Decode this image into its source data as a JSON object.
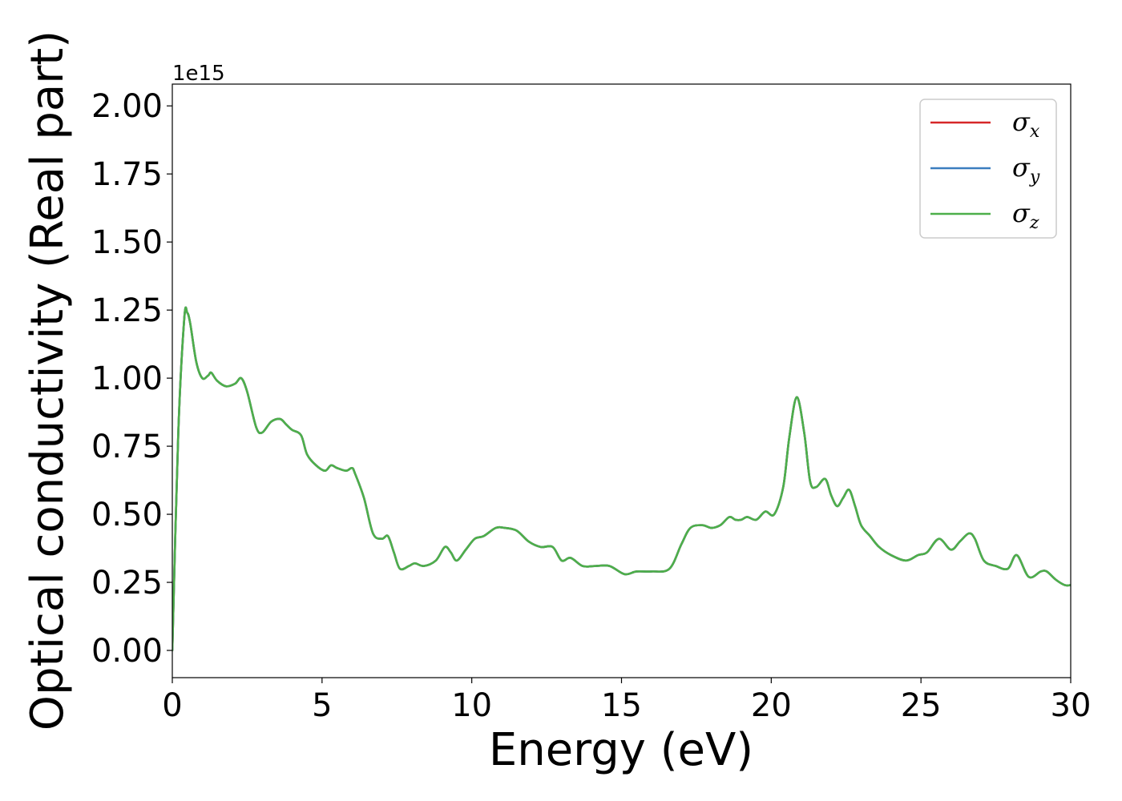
{
  "chart_data": {
    "type": "line",
    "title": "",
    "xlabel": "Energy (eV)",
    "ylabel": "Optical conductivity (Real part)",
    "y_offset_label": "1e15",
    "xlim": [
      0,
      30
    ],
    "ylim": [
      -0.1,
      2.08
    ],
    "x_ticks": [
      0,
      5,
      10,
      15,
      20,
      25,
      30
    ],
    "x_tick_labels": [
      "0",
      "5",
      "10",
      "15",
      "20",
      "25",
      "30"
    ],
    "y_ticks": [
      0,
      0.25,
      0.5,
      0.75,
      1.0,
      1.25,
      1.5,
      1.75,
      2.0
    ],
    "y_tick_labels": [
      "0.00",
      "0.25",
      "0.50",
      "0.75",
      "1.00",
      "1.25",
      "1.50",
      "1.75",
      "2.00"
    ],
    "grid": false,
    "legend_position": "top-right",
    "legend": [
      {
        "symbol": "σ",
        "subscript": "x",
        "color": "#d62728"
      },
      {
        "symbol": "σ",
        "subscript": "y",
        "color": "#3a7dbf"
      },
      {
        "symbol": "σ",
        "subscript": "z",
        "color": "#4daf4a"
      }
    ],
    "x": [
      0,
      0.2,
      0.4,
      0.5,
      0.6,
      0.8,
      1.0,
      1.2,
      1.3,
      1.5,
      1.8,
      2.1,
      2.3,
      2.5,
      2.8,
      3.0,
      3.3,
      3.6,
      3.8,
      4.0,
      4.3,
      4.5,
      4.8,
      5.1,
      5.3,
      5.5,
      5.8,
      6.0,
      6.1,
      6.4,
      6.7,
      7.0,
      7.2,
      7.4,
      7.6,
      7.9,
      8.1,
      8.4,
      8.8,
      9.1,
      9.3,
      9.5,
      9.8,
      10.1,
      10.4,
      10.8,
      11.1,
      11.5,
      11.9,
      12.3,
      12.7,
      13.0,
      13.3,
      13.7,
      14.1,
      14.6,
      15.1,
      15.5,
      16.0,
      16.6,
      17.0,
      17.3,
      17.7,
      18.0,
      18.3,
      18.6,
      18.8,
      19.0,
      19.2,
      19.5,
      19.8,
      20.1,
      20.4,
      20.6,
      20.85,
      21.1,
      21.3,
      21.5,
      21.8,
      22.0,
      22.2,
      22.4,
      22.6,
      22.8,
      23.0,
      23.3,
      23.6,
      24.0,
      24.5,
      24.9,
      25.2,
      25.6,
      26.0,
      26.3,
      26.6,
      26.8,
      27.1,
      27.5,
      27.9,
      28.2,
      28.6,
      29.0,
      29.2,
      29.5,
      29.8,
      30.0
    ],
    "series": [
      {
        "name": "σx",
        "color": "#d62728",
        "values": [
          0.0,
          0.8,
          1.22,
          1.24,
          1.2,
          1.06,
          1.0,
          1.01,
          1.02,
          0.99,
          0.97,
          0.98,
          1.0,
          0.95,
          0.82,
          0.8,
          0.84,
          0.85,
          0.83,
          0.81,
          0.79,
          0.72,
          0.68,
          0.66,
          0.68,
          0.67,
          0.66,
          0.67,
          0.65,
          0.56,
          0.43,
          0.41,
          0.42,
          0.36,
          0.3,
          0.31,
          0.32,
          0.31,
          0.33,
          0.38,
          0.36,
          0.33,
          0.37,
          0.41,
          0.42,
          0.45,
          0.45,
          0.44,
          0.4,
          0.38,
          0.38,
          0.33,
          0.34,
          0.31,
          0.31,
          0.31,
          0.28,
          0.29,
          0.29,
          0.3,
          0.39,
          0.45,
          0.46,
          0.45,
          0.46,
          0.49,
          0.48,
          0.48,
          0.49,
          0.48,
          0.51,
          0.5,
          0.6,
          0.78,
          0.93,
          0.8,
          0.62,
          0.6,
          0.63,
          0.57,
          0.53,
          0.56,
          0.59,
          0.53,
          0.46,
          0.42,
          0.38,
          0.35,
          0.33,
          0.35,
          0.36,
          0.41,
          0.37,
          0.4,
          0.43,
          0.41,
          0.33,
          0.31,
          0.3,
          0.35,
          0.27,
          0.29,
          0.29,
          0.26,
          0.24,
          0.24
        ]
      },
      {
        "name": "σy",
        "color": "#3a7dbf",
        "values": [
          0.0,
          0.8,
          1.22,
          1.24,
          1.2,
          1.06,
          1.0,
          1.01,
          1.02,
          0.99,
          0.97,
          0.98,
          1.0,
          0.95,
          0.82,
          0.8,
          0.84,
          0.85,
          0.83,
          0.81,
          0.79,
          0.72,
          0.68,
          0.66,
          0.68,
          0.67,
          0.66,
          0.67,
          0.65,
          0.56,
          0.43,
          0.41,
          0.42,
          0.36,
          0.3,
          0.31,
          0.32,
          0.31,
          0.33,
          0.38,
          0.36,
          0.33,
          0.37,
          0.41,
          0.42,
          0.45,
          0.45,
          0.44,
          0.4,
          0.38,
          0.38,
          0.33,
          0.34,
          0.31,
          0.31,
          0.31,
          0.28,
          0.29,
          0.29,
          0.3,
          0.39,
          0.45,
          0.46,
          0.45,
          0.46,
          0.49,
          0.48,
          0.48,
          0.49,
          0.48,
          0.51,
          0.5,
          0.6,
          0.78,
          0.93,
          0.8,
          0.62,
          0.6,
          0.63,
          0.57,
          0.53,
          0.56,
          0.59,
          0.53,
          0.46,
          0.42,
          0.38,
          0.35,
          0.33,
          0.35,
          0.36,
          0.41,
          0.37,
          0.4,
          0.43,
          0.41,
          0.33,
          0.31,
          0.3,
          0.35,
          0.27,
          0.29,
          0.29,
          0.26,
          0.24,
          0.24
        ]
      },
      {
        "name": "σz",
        "color": "#4daf4a",
        "values": [
          0.0,
          0.8,
          1.22,
          1.24,
          1.2,
          1.06,
          1.0,
          1.01,
          1.02,
          0.99,
          0.97,
          0.98,
          1.0,
          0.95,
          0.82,
          0.8,
          0.84,
          0.85,
          0.83,
          0.81,
          0.79,
          0.72,
          0.68,
          0.66,
          0.68,
          0.67,
          0.66,
          0.67,
          0.65,
          0.56,
          0.43,
          0.41,
          0.42,
          0.36,
          0.3,
          0.31,
          0.32,
          0.31,
          0.33,
          0.38,
          0.36,
          0.33,
          0.37,
          0.41,
          0.42,
          0.45,
          0.45,
          0.44,
          0.4,
          0.38,
          0.38,
          0.33,
          0.34,
          0.31,
          0.31,
          0.31,
          0.28,
          0.29,
          0.29,
          0.3,
          0.39,
          0.45,
          0.46,
          0.45,
          0.46,
          0.49,
          0.48,
          0.48,
          0.49,
          0.48,
          0.51,
          0.5,
          0.6,
          0.78,
          0.93,
          0.8,
          0.62,
          0.6,
          0.63,
          0.57,
          0.53,
          0.56,
          0.59,
          0.53,
          0.46,
          0.42,
          0.38,
          0.35,
          0.33,
          0.35,
          0.36,
          0.41,
          0.37,
          0.4,
          0.43,
          0.41,
          0.33,
          0.31,
          0.3,
          0.35,
          0.27,
          0.29,
          0.29,
          0.26,
          0.24,
          0.24
        ]
      }
    ]
  }
}
